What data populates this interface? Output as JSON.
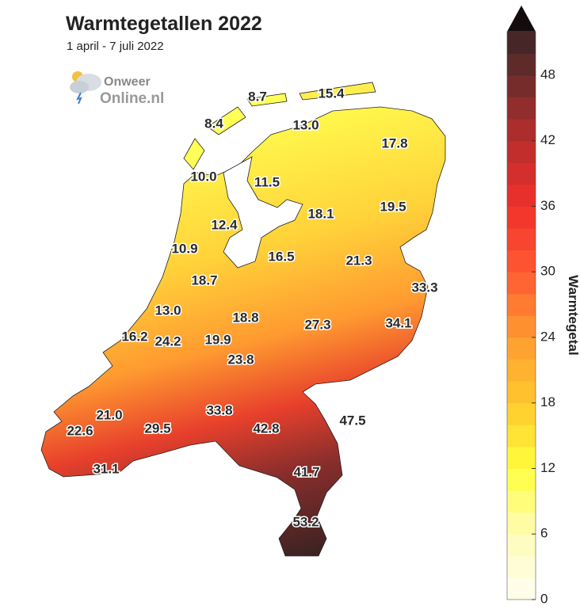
{
  "header": {
    "title": "Warmtegetallen 2022",
    "subtitle": "1 april - 7 juli 2022"
  },
  "logo": {
    "line1": "Onweer",
    "line2": "Online.nl"
  },
  "stations": [
    "8.7",
    "15.4",
    "8.4",
    "13.0",
    "17.8",
    "10.0",
    "11.5",
    "18.1",
    "19.5",
    "12.4",
    "10.9",
    "16.5",
    "21.3",
    "18.7",
    "33.3",
    "13.0",
    "18.8",
    "27.3",
    "34.1",
    "16.2",
    "24.2",
    "19.9",
    "23.8",
    "21.0",
    "33.8",
    "47.5",
    "22.6",
    "29.5",
    "42.8",
    "31.1",
    "41.7",
    "53.2"
  ],
  "colorbar": {
    "title": "Warmtegetal",
    "range": [
      0,
      52
    ],
    "ticks": [
      0,
      6,
      12,
      18,
      24,
      30,
      36,
      42,
      48
    ],
    "step": 2,
    "colors": [
      [
        0,
        "#fffff2"
      ],
      [
        6,
        "#fffbb8"
      ],
      [
        12,
        "#ffff3c"
      ],
      [
        18,
        "#ffc92e"
      ],
      [
        24,
        "#ff9b30"
      ],
      [
        30,
        "#ff5a32"
      ],
      [
        36,
        "#f0302c"
      ],
      [
        42,
        "#b82e2c"
      ],
      [
        48,
        "#6a2c2c"
      ],
      [
        52,
        "#3a2424"
      ]
    ],
    "over_color": "#140c0c"
  }
}
